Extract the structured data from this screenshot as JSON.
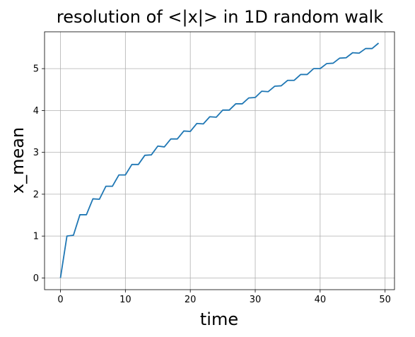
{
  "chart_data": {
    "type": "line",
    "title": "resolution of <|x|> in 1D random walk",
    "xlabel": "time",
    "ylabel": "x_mean",
    "xlim": [
      -2.45,
      51.45
    ],
    "ylim": [
      -0.28,
      5.88
    ],
    "xticks": [
      0,
      10,
      20,
      30,
      40,
      50
    ],
    "yticks": [
      0,
      1,
      2,
      3,
      4,
      5
    ],
    "grid": true,
    "series": [
      {
        "color": "#1f77b4",
        "x": [
          0,
          1,
          2,
          3,
          4,
          5,
          6,
          7,
          8,
          9,
          10,
          11,
          12,
          13,
          14,
          15,
          16,
          17,
          18,
          19,
          20,
          21,
          22,
          23,
          24,
          25,
          26,
          27,
          28,
          29,
          30,
          31,
          32,
          33,
          34,
          35,
          36,
          37,
          38,
          39,
          40,
          41,
          42,
          43,
          44,
          45,
          46,
          47,
          48,
          49
        ],
        "y": [
          0.0,
          1.0,
          1.02,
          1.51,
          1.51,
          1.89,
          1.88,
          2.19,
          2.19,
          2.46,
          2.46,
          2.71,
          2.71,
          2.93,
          2.94,
          3.15,
          3.13,
          3.32,
          3.32,
          3.51,
          3.5,
          3.69,
          3.68,
          3.85,
          3.84,
          4.01,
          4.01,
          4.16,
          4.16,
          4.3,
          4.31,
          4.46,
          4.45,
          4.58,
          4.59,
          4.72,
          4.72,
          4.86,
          4.86,
          5.0,
          5.0,
          5.12,
          5.13,
          5.25,
          5.26,
          5.38,
          5.37,
          5.48,
          5.48,
          5.61
        ]
      }
    ]
  }
}
